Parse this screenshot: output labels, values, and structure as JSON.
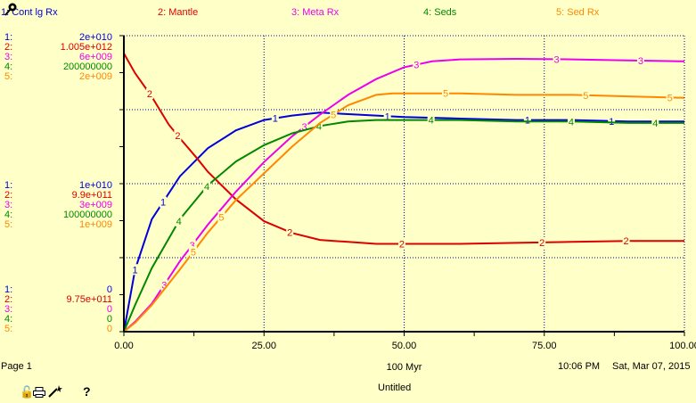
{
  "chart_data": {
    "type": "line",
    "xlim": [
      0,
      100
    ],
    "x_ticks": [
      "0.00",
      "25.00",
      "50.00",
      "75.00",
      "100.00"
    ],
    "xlabel": "100 Myr",
    "grid": true,
    "legend_position": "top",
    "series": [
      {
        "num": "1",
        "name": "Cont lg Rx",
        "color": "#0000dd",
        "axis_labels": [
          "2e+010",
          "1e+010",
          "0"
        ],
        "ylim": [
          0,
          20000000000.0
        ],
        "x": [
          0,
          2,
          5,
          10,
          15,
          20,
          25,
          30,
          35,
          40,
          45,
          50,
          60,
          70,
          80,
          90,
          100
        ],
        "y": [
          0,
          4200000000.0,
          7600000000.0,
          10500000000.0,
          12400000000.0,
          13600000000.0,
          14300000000.0,
          14600000000.0,
          14800000000.0,
          14700000000.0,
          14600000000.0,
          14500000000.0,
          14400000000.0,
          14300000000.0,
          14300000000.0,
          14200000000.0,
          14200000000.0
        ]
      },
      {
        "num": "2",
        "name": "Mantle",
        "color": "#dd0000",
        "axis_labels": [
          "1.005e+012",
          "9.9e+011",
          "9.75e+011"
        ],
        "ylim": [
          975000000000.0,
          1005000000000.0
        ],
        "x": [
          0,
          2,
          5,
          8,
          10,
          13,
          15,
          20,
          25,
          30,
          35,
          40,
          45,
          50,
          60,
          70,
          80,
          90,
          100
        ],
        "y": [
          1003200000000.0,
          1001200000000.0,
          998800000000.0,
          996000000000.0,
          994600000000.0,
          992600000000.0,
          991200000000.0,
          988400000000.0,
          986200000000.0,
          985000000000.0,
          984300000000.0,
          984100000000.0,
          983900000000.0,
          983900000000.0,
          983900000000.0,
          984000000000.0,
          984100000000.0,
          984200000000.0,
          984200000000.0
        ]
      },
      {
        "num": "3",
        "name": "Meta Rx",
        "color": "#ee00ee",
        "axis_labels": [
          "6e+009",
          "3e+009",
          "0"
        ],
        "ylim": [
          0,
          6000000000.0
        ],
        "x": [
          0,
          2,
          5,
          10,
          15,
          20,
          25,
          30,
          35,
          40,
          45,
          50,
          55,
          60,
          70,
          80,
          90,
          100
        ],
        "y": [
          0,
          200000000.0,
          570000000.0,
          1430000000.0,
          2170000000.0,
          2840000000.0,
          3440000000.0,
          3960000000.0,
          4400000000.0,
          4800000000.0,
          5120000000.0,
          5360000000.0,
          5480000000.0,
          5520000000.0,
          5530000000.0,
          5520000000.0,
          5500000000.0,
          5480000000.0
        ]
      },
      {
        "num": "4",
        "name": "Seds",
        "color": "#008800",
        "axis_labels": [
          "200000000",
          "100000000",
          "0"
        ],
        "ylim": [
          0,
          200000000.0
        ],
        "x": [
          0,
          2,
          5,
          10,
          15,
          20,
          25,
          30,
          35,
          40,
          45,
          50,
          60,
          70,
          80,
          90,
          100
        ],
        "y": [
          0,
          18000000.0,
          43000000.0,
          76000000.0,
          99000000.0,
          115000000.0,
          126000000.0,
          134000000.0,
          139000000.0,
          142000000.0,
          143000000.0,
          143000000.0,
          143000000.0,
          142000000.0,
          142000000.0,
          141000000.0,
          141000000.0
        ]
      },
      {
        "num": "5",
        "name": "Sed Rx",
        "color": "#ff8800",
        "axis_labels": [
          "2e+009",
          "1e+009",
          "0"
        ],
        "ylim": [
          0,
          2000000000.0
        ],
        "x": [
          0,
          2,
          5,
          10,
          15,
          20,
          25,
          30,
          35,
          40,
          45,
          48,
          55,
          60,
          70,
          80,
          90,
          100
        ],
        "y": [
          0,
          60000000.0,
          180000000.0,
          420000000.0,
          670000000.0,
          890000000.0,
          1070000000.0,
          1250000000.0,
          1410000000.0,
          1530000000.0,
          1600000000.0,
          1610000000.0,
          1610000000.0,
          1610000000.0,
          1600000000.0,
          1600000000.0,
          1590000000.0,
          1580000000.0
        ]
      }
    ]
  },
  "footer": {
    "page": "Page 1",
    "time": "10:06 PM",
    "date": "Sat, Mar 07, 2015",
    "title": "Untitled",
    "help": "?"
  }
}
